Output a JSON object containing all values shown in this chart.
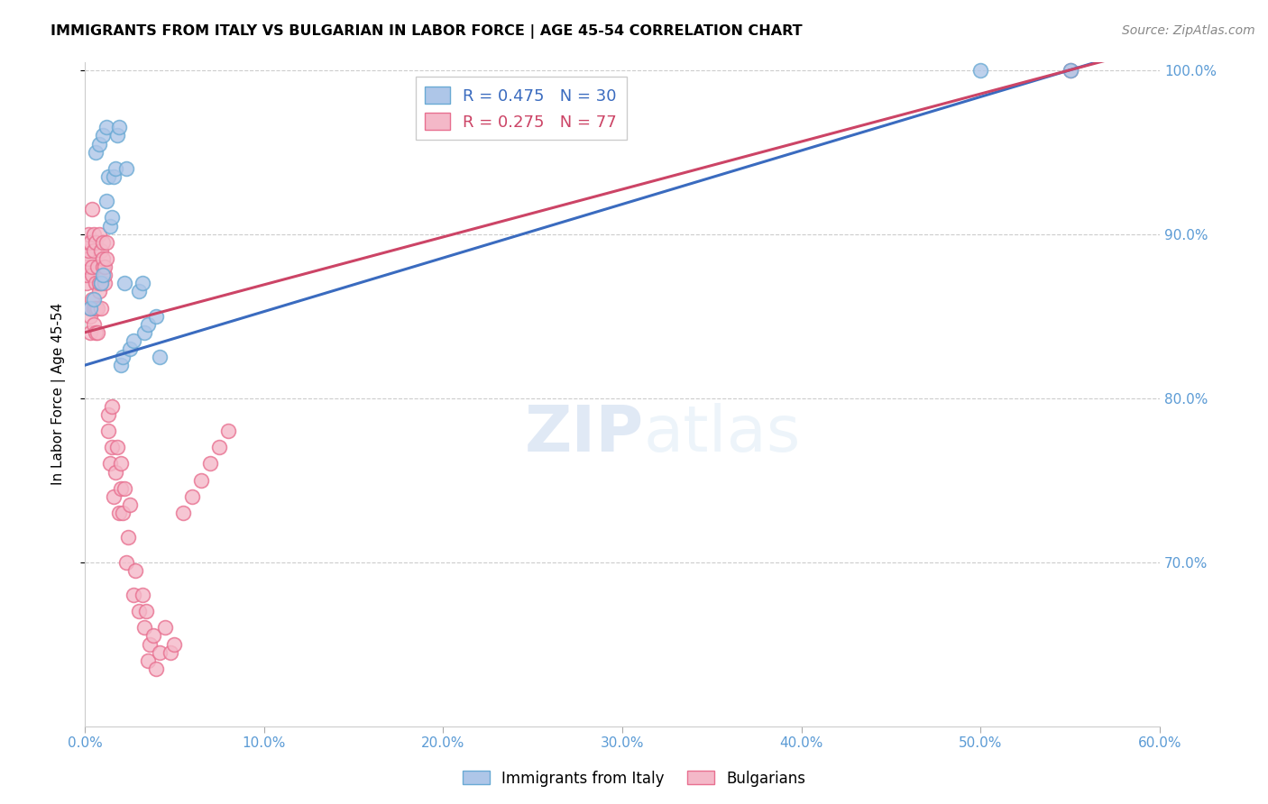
{
  "title": "IMMIGRANTS FROM ITALY VS BULGARIAN IN LABOR FORCE | AGE 45-54 CORRELATION CHART",
  "source": "Source: ZipAtlas.com",
  "ylabel": "In Labor Force | Age 45-54",
  "xlim": [
    0.0,
    0.6
  ],
  "ylim": [
    0.6,
    1.005
  ],
  "yticks": [
    0.7,
    0.8,
    0.9,
    1.0
  ],
  "ytick_labels": [
    "70.0%",
    "80.0%",
    "90.0%",
    "100.0%"
  ],
  "xticks": [
    0.0,
    0.1,
    0.2,
    0.3,
    0.4,
    0.5,
    0.6
  ],
  "xtick_labels": [
    "0.0%",
    "10.0%",
    "20.0%",
    "30.0%",
    "40.0%",
    "50.0%",
    "60.0%"
  ],
  "italy_color": "#aec6e8",
  "italy_edge_color": "#6aaad4",
  "bulgarian_color": "#f4b8c8",
  "bulgarian_edge_color": "#e87090",
  "italy_R": 0.475,
  "italy_N": 30,
  "bulgarian_R": 0.275,
  "bulgarian_N": 77,
  "italy_line_color": "#3a6bbf",
  "bulgarian_line_color": "#cc4466",
  "watermark_zip": "ZIP",
  "watermark_atlas": "atlas",
  "legend_italy_label": "Immigrants from Italy",
  "legend_bulgarian_label": "Bulgarians",
  "italy_x": [
    0.003,
    0.005,
    0.006,
    0.008,
    0.009,
    0.01,
    0.01,
    0.012,
    0.012,
    0.013,
    0.014,
    0.015,
    0.016,
    0.017,
    0.018,
    0.019,
    0.02,
    0.021,
    0.022,
    0.023,
    0.025,
    0.027,
    0.03,
    0.032,
    0.033,
    0.035,
    0.04,
    0.042,
    0.5,
    0.55
  ],
  "italy_y": [
    0.855,
    0.86,
    0.95,
    0.955,
    0.87,
    0.875,
    0.96,
    0.965,
    0.92,
    0.935,
    0.905,
    0.91,
    0.935,
    0.94,
    0.96,
    0.965,
    0.82,
    0.825,
    0.87,
    0.94,
    0.83,
    0.835,
    0.865,
    0.87,
    0.84,
    0.845,
    0.85,
    0.825,
    1.0,
    1.0
  ],
  "bulgarian_x": [
    0.001,
    0.001,
    0.001,
    0.002,
    0.002,
    0.002,
    0.002,
    0.003,
    0.003,
    0.003,
    0.003,
    0.004,
    0.004,
    0.004,
    0.004,
    0.005,
    0.005,
    0.005,
    0.005,
    0.006,
    0.006,
    0.006,
    0.006,
    0.007,
    0.007,
    0.007,
    0.008,
    0.008,
    0.008,
    0.009,
    0.009,
    0.009,
    0.01,
    0.01,
    0.01,
    0.011,
    0.011,
    0.011,
    0.012,
    0.012,
    0.013,
    0.013,
    0.014,
    0.015,
    0.015,
    0.016,
    0.017,
    0.018,
    0.019,
    0.02,
    0.02,
    0.021,
    0.022,
    0.023,
    0.024,
    0.025,
    0.027,
    0.028,
    0.03,
    0.032,
    0.033,
    0.034,
    0.035,
    0.036,
    0.038,
    0.04,
    0.042,
    0.045,
    0.048,
    0.05,
    0.055,
    0.06,
    0.065,
    0.07,
    0.075,
    0.08,
    0.55
  ],
  "bulgarian_y": [
    0.87,
    0.875,
    0.88,
    0.885,
    0.89,
    0.895,
    0.9,
    0.84,
    0.85,
    0.855,
    0.895,
    0.86,
    0.875,
    0.88,
    0.915,
    0.845,
    0.855,
    0.89,
    0.9,
    0.84,
    0.855,
    0.87,
    0.895,
    0.84,
    0.855,
    0.88,
    0.865,
    0.87,
    0.9,
    0.855,
    0.87,
    0.89,
    0.88,
    0.885,
    0.895,
    0.87,
    0.875,
    0.88,
    0.885,
    0.895,
    0.78,
    0.79,
    0.76,
    0.77,
    0.795,
    0.74,
    0.755,
    0.77,
    0.73,
    0.745,
    0.76,
    0.73,
    0.745,
    0.7,
    0.715,
    0.735,
    0.68,
    0.695,
    0.67,
    0.68,
    0.66,
    0.67,
    0.64,
    0.65,
    0.655,
    0.635,
    0.645,
    0.66,
    0.645,
    0.65,
    0.73,
    0.74,
    0.75,
    0.76,
    0.77,
    0.78,
    1.0
  ]
}
